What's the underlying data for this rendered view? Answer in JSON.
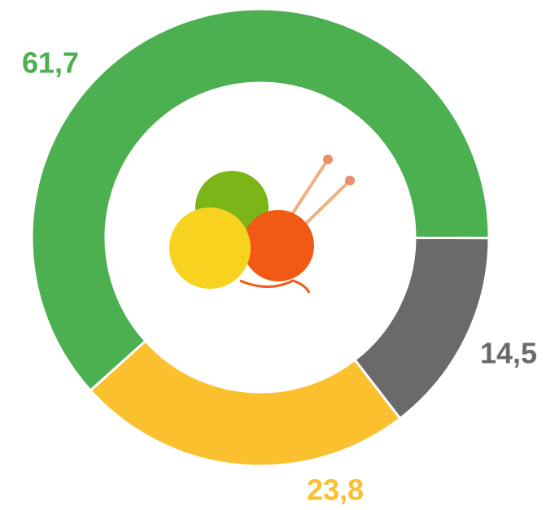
{
  "chart_data": {
    "type": "donut",
    "values": [
      61.7,
      14.5,
      23.8
    ],
    "value_labels": [
      "61,7",
      "14,5",
      "23,8"
    ],
    "colors": [
      "#4caf50",
      "#6a6a6a",
      "#fbc02d"
    ]
  }
}
